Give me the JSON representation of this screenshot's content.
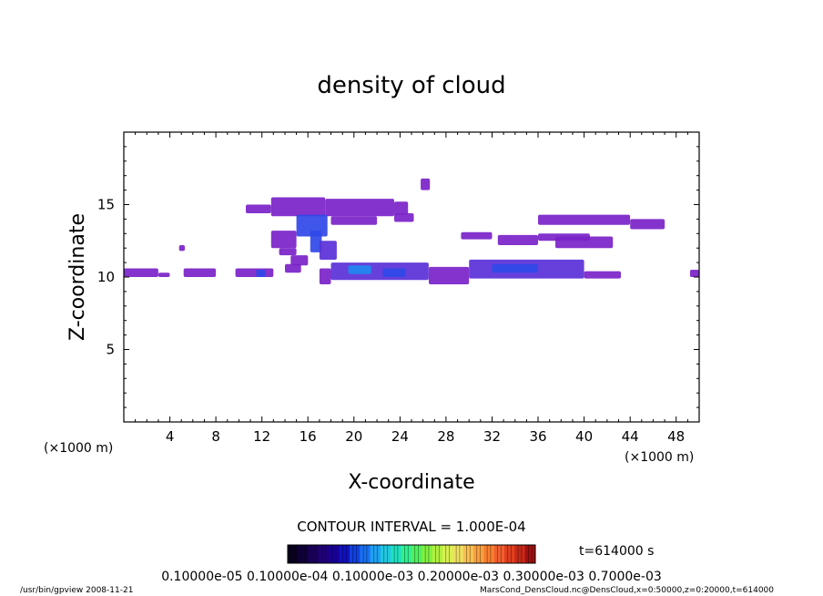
{
  "chart_data": {
    "type": "heatmap",
    "title": "density of cloud",
    "xlabel": "X-coordinate",
    "ylabel": "Z-coordinate",
    "x_unit": "(×1000 m)",
    "y_unit": "(×1000 m)",
    "xlim": [
      0,
      50
    ],
    "ylim": [
      0,
      20
    ],
    "x_ticks": [
      "4",
      "8",
      "12",
      "16",
      "20",
      "24",
      "28",
      "32",
      "36",
      "40",
      "44",
      "48"
    ],
    "y_ticks": [
      "5",
      "10",
      "15"
    ],
    "contour_interval": "CONTOUR INTERVAL = 1.000E-04",
    "time_label": "t=614000 s",
    "colorbar_labels": "0.10000e-05 0.10000e-04 0.10000e-03 0.20000e-03 0.30000e-03 0.7000e-03",
    "colorbar_colors": [
      "#0a0020",
      "#10003a",
      "#1a0058",
      "#200078",
      "#180098",
      "#1010c0",
      "#1040e0",
      "#1870f0",
      "#20a0f0",
      "#20c8e0",
      "#20e0c0",
      "#30f090",
      "#50f060",
      "#80f040",
      "#b0f040",
      "#d8f050",
      "#f0e060",
      "#f8c050",
      "#f8a040",
      "#f88030",
      "#f06030",
      "#e04020",
      "#c82818",
      "#a01010"
    ],
    "regions": [
      {
        "x0": 0.0,
        "x1": 3.0,
        "z0": 10.0,
        "z1": 10.6,
        "level": 0.1
      },
      {
        "x0": 3.0,
        "x1": 4.0,
        "z0": 10.0,
        "z1": 10.3,
        "level": 0.1
      },
      {
        "x0": 5.2,
        "x1": 8.0,
        "z0": 10.0,
        "z1": 10.6,
        "level": 0.1
      },
      {
        "x0": 9.7,
        "x1": 13.0,
        "z0": 10.0,
        "z1": 10.6,
        "level": 0.1
      },
      {
        "x0": 11.5,
        "x1": 12.3,
        "z0": 10.0,
        "z1": 10.5,
        "level": 0.3
      },
      {
        "x0": 4.8,
        "x1": 5.3,
        "z0": 11.8,
        "z1": 12.2,
        "level": 0.1
      },
      {
        "x0": 14.0,
        "x1": 15.4,
        "z0": 10.3,
        "z1": 10.9,
        "level": 0.1
      },
      {
        "x0": 10.6,
        "x1": 12.8,
        "z0": 14.4,
        "z1": 15.0,
        "level": 0.1
      },
      {
        "x0": 12.8,
        "x1": 17.5,
        "z0": 14.2,
        "z1": 15.5,
        "level": 0.12
      },
      {
        "x0": 17.5,
        "x1": 23.5,
        "z0": 14.2,
        "z1": 15.4,
        "level": 0.1
      },
      {
        "x0": 23.5,
        "x1": 24.7,
        "z0": 14.3,
        "z1": 15.2,
        "level": 0.1
      },
      {
        "x0": 23.5,
        "x1": 25.2,
        "z0": 13.8,
        "z1": 14.4,
        "level": 0.1
      },
      {
        "x0": 18.0,
        "x1": 22.0,
        "z0": 13.6,
        "z1": 14.2,
        "level": 0.1
      },
      {
        "x0": 15.0,
        "x1": 17.7,
        "z0": 12.8,
        "z1": 14.3,
        "level": 0.3
      },
      {
        "x0": 16.2,
        "x1": 17.2,
        "z0": 11.7,
        "z1": 13.2,
        "level": 0.25
      },
      {
        "x0": 12.8,
        "x1": 15.0,
        "z0": 12.0,
        "z1": 13.2,
        "level": 0.1
      },
      {
        "x0": 13.5,
        "x1": 15.0,
        "z0": 11.5,
        "z1": 12.0,
        "level": 0.1
      },
      {
        "x0": 17.0,
        "x1": 18.5,
        "z0": 11.2,
        "z1": 12.5,
        "level": 0.15
      },
      {
        "x0": 14.5,
        "x1": 16.0,
        "z0": 10.8,
        "z1": 11.5,
        "level": 0.1
      },
      {
        "x0": 17.0,
        "x1": 18.0,
        "z0": 9.5,
        "z1": 10.6,
        "level": 0.1
      },
      {
        "x0": 25.8,
        "x1": 26.6,
        "z0": 16.0,
        "z1": 16.8,
        "level": 0.1
      },
      {
        "x0": 18.0,
        "x1": 26.5,
        "z0": 9.8,
        "z1": 11.0,
        "level": 0.15
      },
      {
        "x0": 19.5,
        "x1": 21.5,
        "z0": 10.2,
        "z1": 10.8,
        "level": 0.45
      },
      {
        "x0": 22.5,
        "x1": 24.5,
        "z0": 10.0,
        "z1": 10.6,
        "level": 0.3
      },
      {
        "x0": 26.5,
        "x1": 30.0,
        "z0": 9.5,
        "z1": 10.7,
        "level": 0.1
      },
      {
        "x0": 30.0,
        "x1": 40.0,
        "z0": 9.9,
        "z1": 11.2,
        "level": 0.15
      },
      {
        "x0": 32.0,
        "x1": 36.0,
        "z0": 10.3,
        "z1": 10.9,
        "level": 0.3
      },
      {
        "x0": 40.0,
        "x1": 43.2,
        "z0": 9.9,
        "z1": 10.4,
        "level": 0.1
      },
      {
        "x0": 29.3,
        "x1": 32.0,
        "z0": 12.6,
        "z1": 13.1,
        "level": 0.1
      },
      {
        "x0": 32.5,
        "x1": 36.0,
        "z0": 12.2,
        "z1": 12.9,
        "level": 0.1
      },
      {
        "x0": 36.0,
        "x1": 40.5,
        "z0": 12.5,
        "z1": 13.0,
        "level": 0.1
      },
      {
        "x0": 37.5,
        "x1": 42.5,
        "z0": 12.0,
        "z1": 12.8,
        "level": 0.12
      },
      {
        "x0": 36.0,
        "x1": 44.0,
        "z0": 13.6,
        "z1": 14.3,
        "level": 0.1
      },
      {
        "x0": 44.0,
        "x1": 47.0,
        "z0": 13.3,
        "z1": 14.0,
        "level": 0.1
      },
      {
        "x0": 49.2,
        "x1": 50.0,
        "z0": 10.0,
        "z1": 10.5,
        "level": 0.1
      }
    ]
  },
  "footer": {
    "left": "/usr/bin/gpview  2008-11-21",
    "right": "MarsCond_DensCloud.nc@DensCloud,x=0:50000,z=0:20000,t=614000"
  }
}
